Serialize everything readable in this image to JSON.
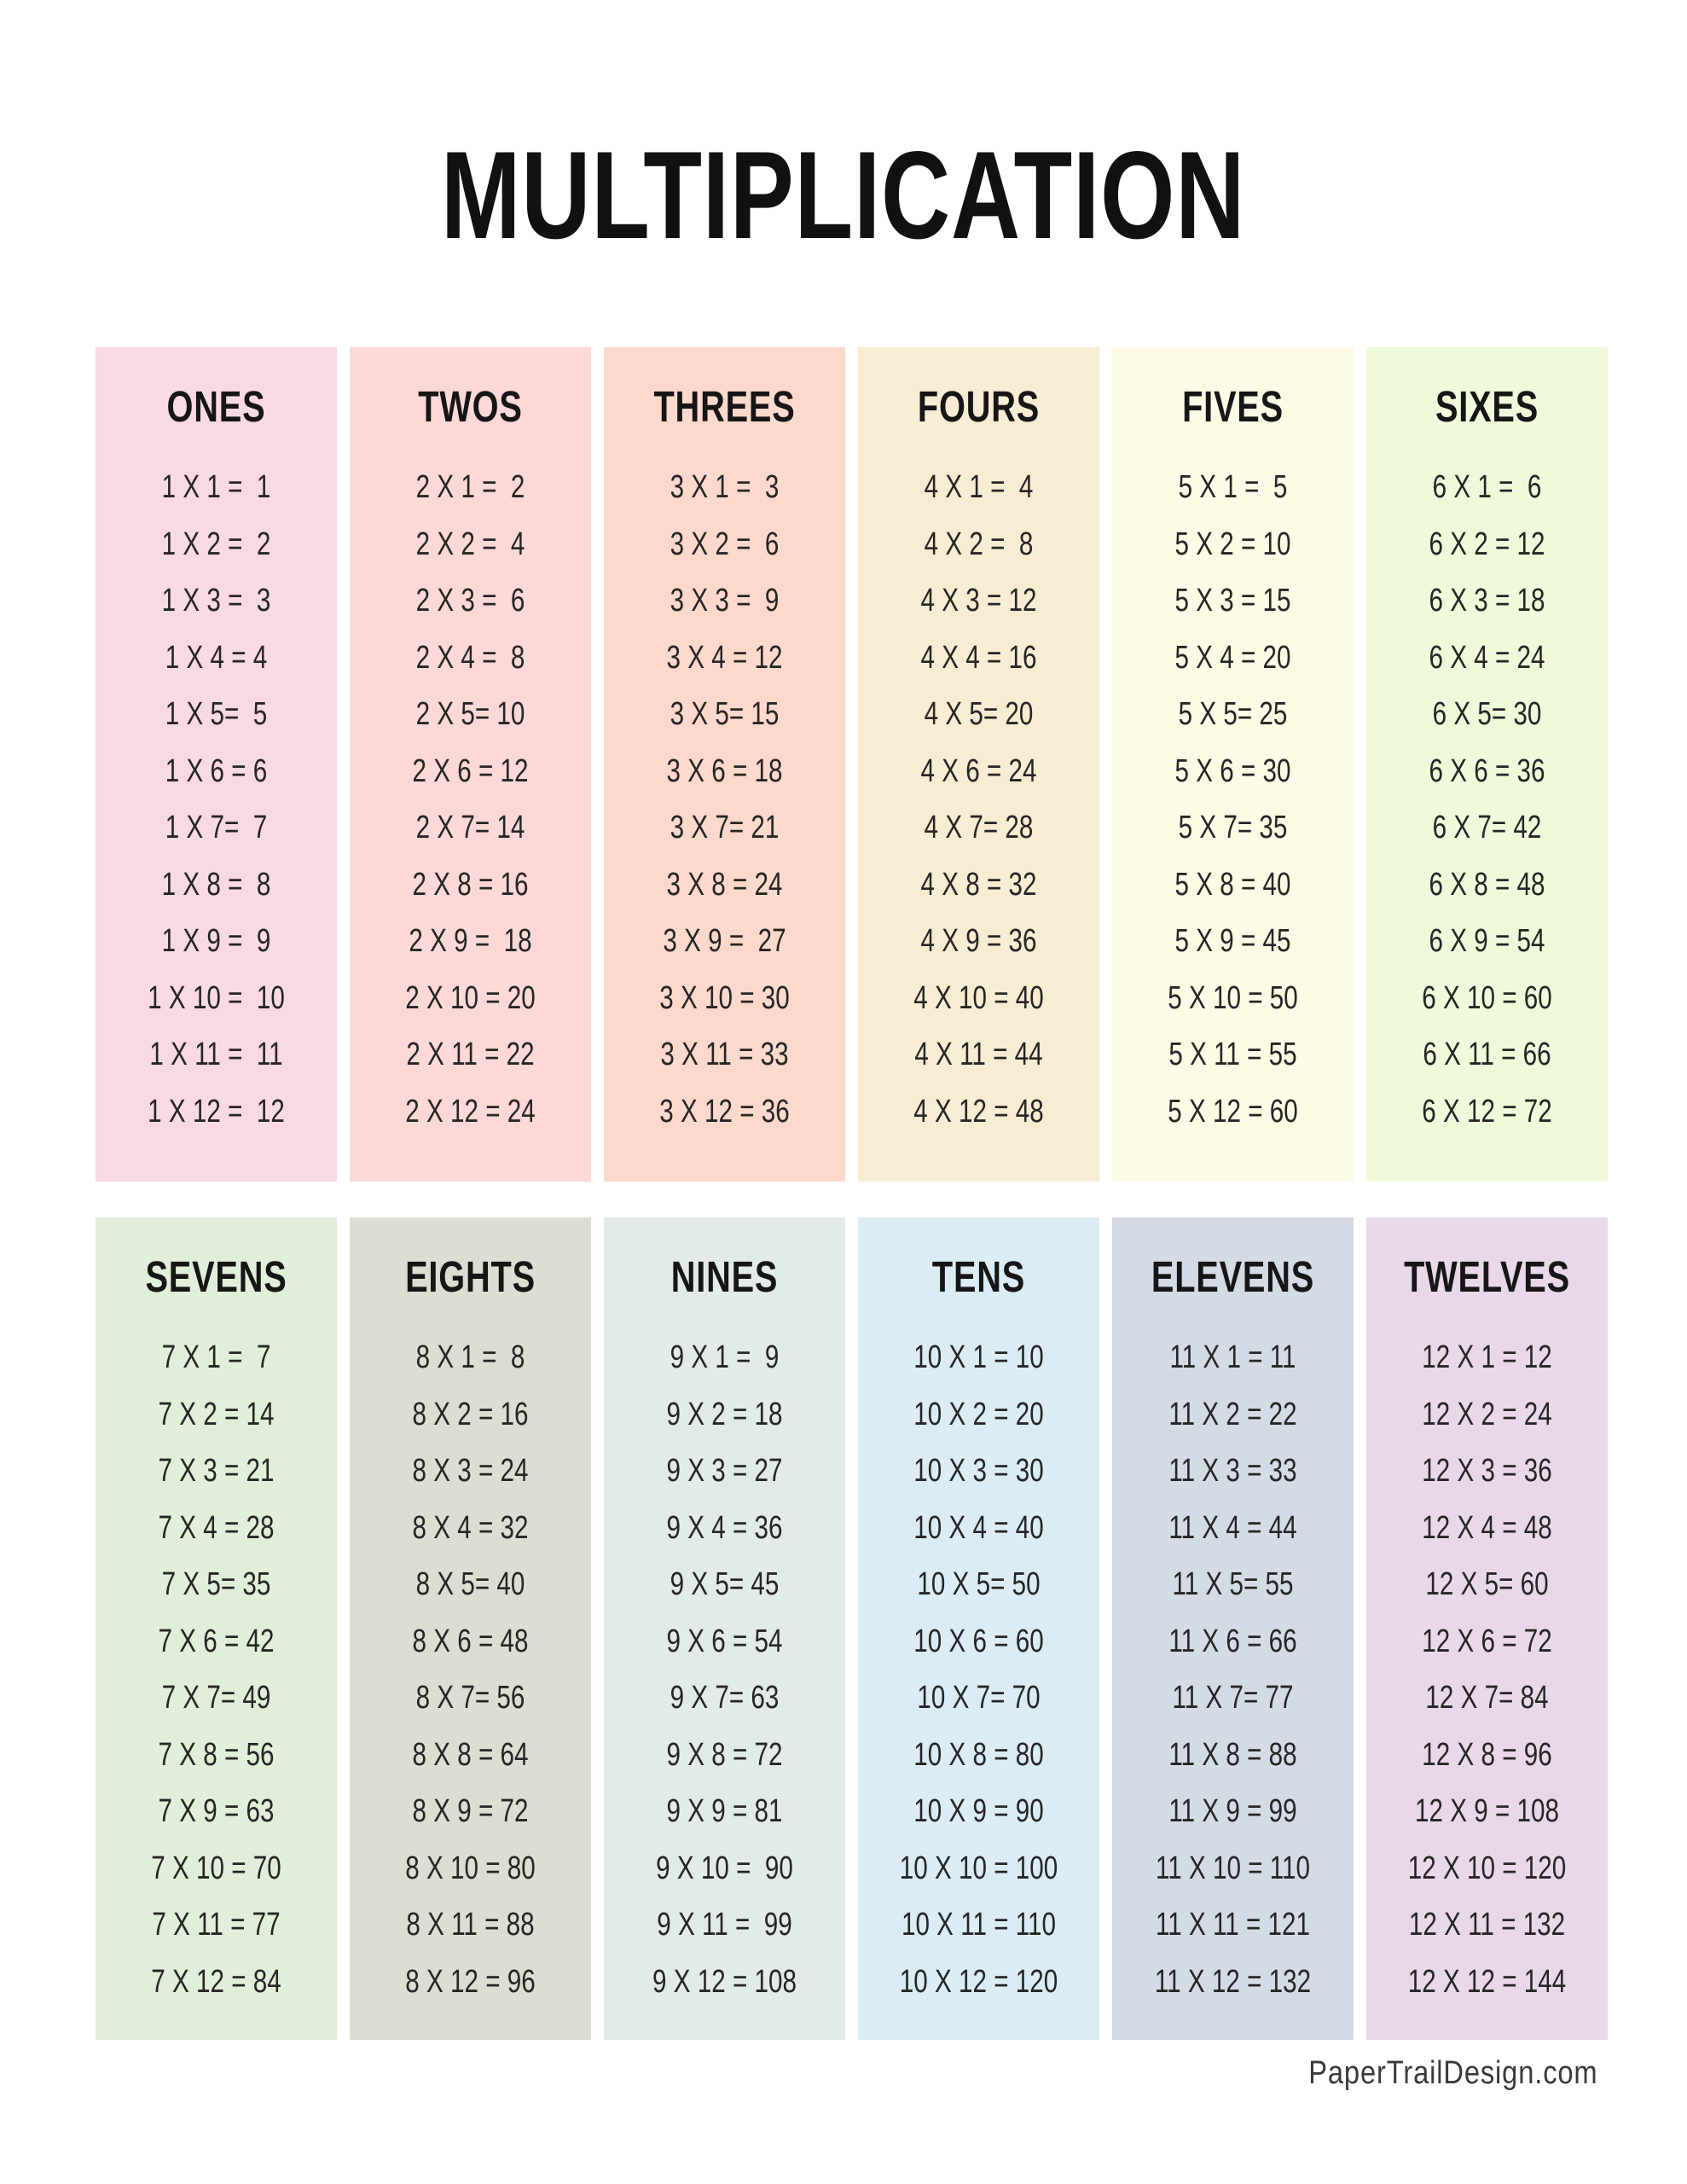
{
  "title": "MULTIPLICATION",
  "footer": {
    "text": "PaperTrailDesign.com"
  },
  "colors": {
    "page_bg": "#ffffff",
    "title_text": "#111111",
    "fact_text": "#262626",
    "footer_text": "#3a3a3a"
  },
  "tables": [
    {
      "label": "ONES",
      "bg": "#f9d9e4",
      "facts": [
        "1 X 1 =  1",
        "1 X 2 =  2",
        "1 X 3 =  3",
        "1 X 4 = 4",
        "1 X 5=  5",
        "1 X 6 = 6",
        "1 X 7=  7",
        "1 X 8 =  8",
        "1 X 9 =  9",
        "1 X 10 =  10",
        "1 X 11 =  11",
        "1 X 12 =  12"
      ]
    },
    {
      "label": "TWOS",
      "bg": "#fcd8d7",
      "facts": [
        "2 X 1 =  2",
        "2 X 2 =  4",
        "2 X 3 =  6",
        "2 X 4 =  8",
        "2 X 5= 10",
        "2 X 6 = 12",
        "2 X 7= 14",
        "2 X 8 = 16",
        "2 X 9 =  18",
        "2 X 10 = 20",
        "2 X 11 = 22",
        "2 X 12 = 24"
      ]
    },
    {
      "label": "THREES",
      "bg": "#fcd9cc",
      "facts": [
        "3 X 1 =  3",
        "3 X 2 =  6",
        "3 X 3 =  9",
        "3 X 4 = 12",
        "3 X 5= 15",
        "3 X 6 = 18",
        "3 X 7= 21",
        "3 X 8 = 24",
        "3 X 9 =  27",
        "3 X 10 = 30",
        "3 X 11 = 33",
        "3 X 12 = 36"
      ]
    },
    {
      "label": "FOURS",
      "bg": "#f8ecd2",
      "facts": [
        "4 X 1 =  4",
        "4 X 2 =  8",
        "4 X 3 = 12",
        "4 X 4 = 16",
        "4 X 5= 20",
        "4 X 6 = 24",
        "4 X 7= 28",
        "4 X 8 = 32",
        "4 X 9 = 36",
        "4 X 10 = 40",
        "4 X 11 = 44",
        "4 X 12 = 48"
      ]
    },
    {
      "label": "FIVES",
      "bg": "#fdfae5",
      "facts": [
        "5 X 1 =  5",
        "5 X 2 = 10",
        "5 X 3 = 15",
        "5 X 4 = 20",
        "5 X 5= 25",
        "5 X 6 = 30",
        "5 X 7= 35",
        "5 X 8 = 40",
        "5 X 9 = 45",
        "5 X 10 = 50",
        "5 X 11 = 55",
        "5 X 12 = 60"
      ]
    },
    {
      "label": "SIXES",
      "bg": "#effadb",
      "facts": [
        "6 X 1 =  6",
        "6 X 2 = 12",
        "6 X 3 = 18",
        "6 X 4 = 24",
        "6 X 5= 30",
        "6 X 6 = 36",
        "6 X 7= 42",
        "6 X 8 = 48",
        "6 X 9 = 54",
        "6 X 10 = 60",
        "6 X 11 = 66",
        "6 X 12 = 72"
      ]
    },
    {
      "label": "SEVENS",
      "bg": "#e1eed9",
      "facts": [
        "7 X 1 =  7",
        "7 X 2 = 14",
        "7 X 3 = 21",
        "7 X 4 = 28",
        "7 X 5= 35",
        "7 X 6 = 42",
        "7 X 7= 49",
        "7 X 8 = 56",
        "7 X 9 = 63",
        "7 X 10 = 70",
        "7 X 11 = 77",
        "7 X 12 = 84"
      ]
    },
    {
      "label": "EIGHTS",
      "bg": "#dbded2",
      "facts": [
        "8 X 1 =  8",
        "8 X 2 = 16",
        "8 X 3 = 24",
        "8 X 4 = 32",
        "8 X 5= 40",
        "8 X 6 = 48",
        "8 X 7= 56",
        "8 X 8 = 64",
        "8 X 9 = 72",
        "8 X 10 = 80",
        "8 X 11 = 88",
        "8 X 12 = 96"
      ]
    },
    {
      "label": "NINES",
      "bg": "#e3ebe6",
      "facts": [
        "9 X 1 =  9",
        "9 X 2 = 18",
        "9 X 3 = 27",
        "9 X 4 = 36",
        "9 X 5= 45",
        "9 X 6 = 54",
        "9 X 7= 63",
        "9 X 8 = 72",
        "9 X 9 = 81",
        "9 X 10 =  90",
        "9 X 11 =  99",
        "9 X 12 = 108"
      ]
    },
    {
      "label": "TENS",
      "bg": "#dcecf4",
      "facts": [
        "10 X 1 = 10",
        "10 X 2 = 20",
        "10 X 3 = 30",
        "10 X 4 = 40",
        "10 X 5= 50",
        "10 X 6 = 60",
        "10 X 7= 70",
        "10 X 8 = 80",
        "10 X 9 = 90",
        "10 X 10 = 100",
        "10 X 11 = 110",
        "10 X 12 = 120"
      ]
    },
    {
      "label": "ELEVENS",
      "bg": "#d4dbe5",
      "facts": [
        "11 X 1 = 11",
        "11 X 2 = 22",
        "11 X 3 = 33",
        "11 X 4 = 44",
        "11 X 5= 55",
        "11 X 6 = 66",
        "11 X 7= 77",
        "11 X 8 = 88",
        "11 X 9 = 99",
        "11 X 10 = 110",
        "11 X 11 = 121",
        "11 X 12 = 132"
      ]
    },
    {
      "label": "TWELVES",
      "bg": "#e8d8e8",
      "facts": [
        "12 X 1 = 12",
        "12 X 2 = 24",
        "12 X 3 = 36",
        "12 X 4 = 48",
        "12 X 5= 60",
        "12 X 6 = 72",
        "12 X 7= 84",
        "12 X 8 = 96",
        "12 X 9 = 108",
        "12 X 10 = 120",
        "12 X 11 = 132",
        "12 X 12 = 144"
      ]
    }
  ]
}
